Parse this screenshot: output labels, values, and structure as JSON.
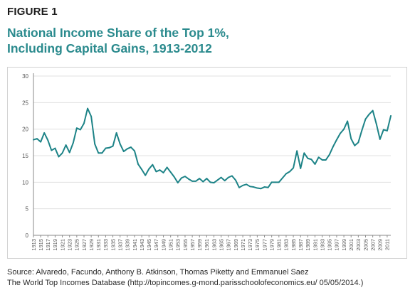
{
  "figure_label": "FIGURE 1",
  "title_lines": [
    "National Income Share of the Top 1%,",
    "Including Capital Gains, 1913-2012"
  ],
  "source_lines": [
    "Source: Alvaredo, Facundo, Anthony B. Atkinson, Thomas Piketty and Emmanuel Saez",
    "The World Top Incomes Database (http://topincomes.g-mond.parisschoolofeconomics.eu/ 05/05/2014.)"
  ],
  "colors": {
    "line": "#1d8387",
    "title": "#2a8a8d",
    "grid": "#e0e0e0",
    "axis": "#8a8a8a",
    "text": "#2a2a2a"
  },
  "chart_data": {
    "type": "line",
    "title": "National Income Share of the Top 1%, Including Capital Gains, 1913-2012",
    "xlabel": "",
    "ylabel": "",
    "ylim": [
      0,
      30
    ],
    "yticks": [
      0,
      5,
      10,
      15,
      20,
      25,
      30
    ],
    "xlim": [
      1913,
      2012
    ],
    "xticks": [
      "1913",
      "1915",
      "1917",
      "1919",
      "1921",
      "1923",
      "1925",
      "1927",
      "1929",
      "1931",
      "1933",
      "1935",
      "1937",
      "1939",
      "1941",
      "1943",
      "1945",
      "1947",
      "1949",
      "1951",
      "1953",
      "1955",
      "1957",
      "1959",
      "1961",
      "1963",
      "1965",
      "1967",
      "1969",
      "1971",
      "1973",
      "1975",
      "1977",
      "1979",
      "1981",
      "1983",
      "1985",
      "1987",
      "1989",
      "1991",
      "1993",
      "1995",
      "1997",
      "1999",
      "2001",
      "2003",
      "2005",
      "2007",
      "2009",
      "2011"
    ],
    "grid": true,
    "series": [
      {
        "x": [
          1913,
          1914,
          1915,
          1916,
          1917,
          1918,
          1919,
          1920,
          1921,
          1922,
          1923,
          1924,
          1925,
          1926,
          1927,
          1928,
          1929,
          1930,
          1931,
          1932,
          1933,
          1934,
          1935,
          1936,
          1937,
          1938,
          1939,
          1940,
          1941,
          1942,
          1943,
          1944,
          1945,
          1946,
          1947,
          1948,
          1949,
          1950,
          1951,
          1952,
          1953,
          1954,
          1955,
          1956,
          1957,
          1958,
          1959,
          1960,
          1961,
          1962,
          1963,
          1964,
          1965,
          1966,
          1967,
          1968,
          1969,
          1970,
          1971,
          1972,
          1973,
          1974,
          1975,
          1976,
          1977,
          1978,
          1979,
          1980,
          1981,
          1982,
          1983,
          1984,
          1985,
          1986,
          1987,
          1988,
          1989,
          1990,
          1991,
          1992,
          1993,
          1994,
          1995,
          1996,
          1997,
          1998,
          1999,
          2000,
          2001,
          2002,
          2003,
          2004,
          2005,
          2006,
          2007,
          2008,
          2009,
          2010,
          2011,
          2012
        ],
        "y": [
          18.0,
          18.2,
          17.6,
          19.3,
          17.9,
          16.0,
          16.4,
          14.8,
          15.5,
          17.0,
          15.6,
          17.4,
          20.2,
          19.9,
          21.1,
          23.9,
          22.4,
          17.2,
          15.5,
          15.5,
          16.4,
          16.5,
          16.8,
          19.3,
          17.2,
          15.8,
          16.3,
          16.6,
          15.9,
          13.4,
          12.4,
          11.3,
          12.5,
          13.3,
          12.0,
          12.3,
          11.8,
          12.8,
          11.9,
          11.0,
          9.9,
          10.8,
          11.1,
          10.6,
          10.2,
          10.2,
          10.7,
          10.1,
          10.7,
          10.0,
          9.9,
          10.4,
          10.9,
          10.3,
          10.9,
          11.2,
          10.4,
          9.0,
          9.4,
          9.6,
          9.2,
          9.1,
          8.9,
          8.8,
          9.1,
          9.0,
          10.0,
          10.0,
          10.0,
          10.8,
          11.6,
          12.0,
          12.7,
          15.9,
          12.6,
          15.5,
          14.5,
          14.3,
          13.4,
          14.7,
          14.2,
          14.2,
          15.2,
          16.7,
          18.0,
          19.2,
          20.0,
          21.5,
          18.2,
          16.9,
          17.5,
          19.8,
          21.9,
          22.8,
          23.5,
          21.0,
          18.1,
          19.9,
          19.7,
          22.5
        ]
      }
    ]
  }
}
